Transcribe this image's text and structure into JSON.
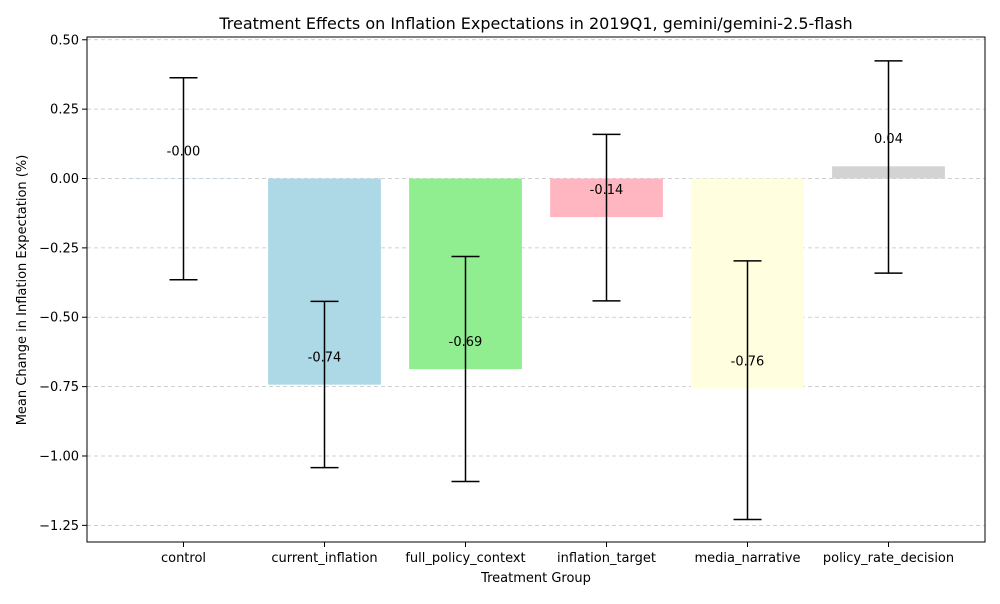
{
  "chart_data": {
    "type": "bar",
    "title": "Treatment Effects on Inflation Expectations in 2019Q1, gemini/gemini-2.5-flash",
    "xlabel": "Treatment Group",
    "ylabel": "Mean Change in Inflation Expectation (%)",
    "categories": [
      "control",
      "current_inflation",
      "full_policy_context",
      "inflation_target",
      "media_narrative",
      "policy_rate_decision"
    ],
    "values": [
      -0.001,
      -0.743,
      -0.687,
      -0.139,
      -0.757,
      0.044
    ],
    "error_low": [
      -0.365,
      -1.042,
      -1.092,
      -0.441,
      -1.229,
      -0.341
    ],
    "error_high": [
      0.363,
      -0.443,
      -0.281,
      0.159,
      -0.297,
      0.424
    ],
    "value_labels": [
      "-0.00",
      "-0.74",
      "-0.69",
      "-0.14",
      "-0.76",
      "0.04"
    ],
    "colors": [
      "#add8e6",
      "#add8e6",
      "#90ee90",
      "#ffb6c1",
      "#ffffe0",
      "#d3d3d3"
    ],
    "ylim": [
      -1.31,
      0.51
    ],
    "yticks": [
      0.5,
      0.25,
      0.0,
      -0.25,
      -0.5,
      -0.75,
      -1.0,
      -1.25
    ],
    "ytick_labels": [
      "0.50",
      "0.25",
      "0.00",
      "−0.25",
      "−0.50",
      "−0.75",
      "−1.00",
      "−1.25"
    ],
    "grid": "y-dashed",
    "legend": "none",
    "error_color": "#000000",
    "grid_color": "#c0c0c0"
  }
}
